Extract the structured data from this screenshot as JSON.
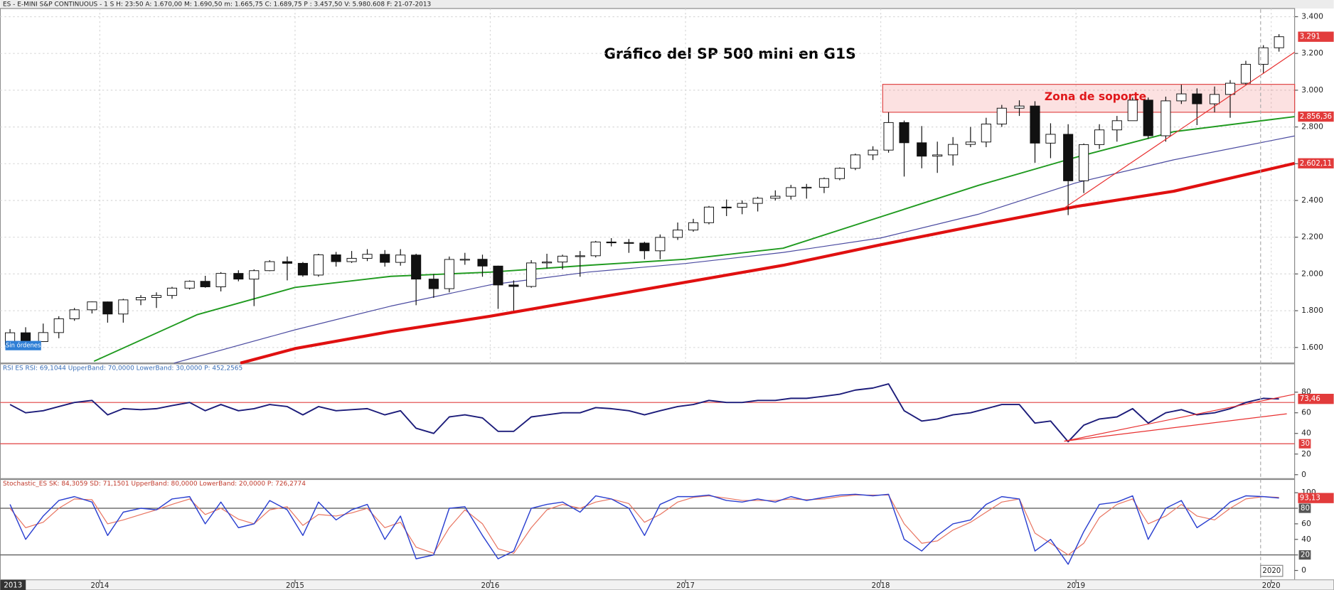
{
  "chart_data": [
    {
      "type": "candlestick",
      "header": "ES - E-MINI S&P CONTINUOUS -  1 S H: 23:50 A: 1.670,00 M: 1.690,50 m: 1.665,75 C: 1.689,75 P : 3.457,50 V: 5.980.608 F: 21-07-2013",
      "title": "Gráfico del SP 500 mini en G1S",
      "button": "Sin órdenes",
      "xlim": [
        2013.49,
        2020.12
      ],
      "xticks": [
        2014,
        2015,
        2016,
        2017,
        2018,
        2019,
        2020
      ],
      "ylim": [
        1520,
        3440
      ],
      "yticks": [
        {
          "value": 1600,
          "label": "1.600"
        },
        {
          "value": 1800,
          "label": "1.800"
        },
        {
          "value": 2000,
          "label": "2.000"
        },
        {
          "value": 2200,
          "label": "2.200"
        },
        {
          "value": 2400,
          "label": "2.400"
        },
        {
          "value": 2600,
          "label": "2.600"
        },
        {
          "value": 2800,
          "label": "2.800"
        },
        {
          "value": 3000,
          "label": "3.000"
        },
        {
          "value": 3200,
          "label": "3.200"
        },
        {
          "value": 3400,
          "label": "3.400"
        }
      ],
      "grid": true,
      "x": [
        2013.54,
        2013.62,
        2013.71,
        2013.79,
        2013.87,
        2013.96,
        2014.04,
        2014.12,
        2014.21,
        2014.29,
        2014.37,
        2014.46,
        2014.54,
        2014.62,
        2014.71,
        2014.79,
        2014.87,
        2014.96,
        2015.04,
        2015.12,
        2015.21,
        2015.29,
        2015.37,
        2015.46,
        2015.54,
        2015.62,
        2015.71,
        2015.79,
        2015.87,
        2015.96,
        2016.04,
        2016.12,
        2016.21,
        2016.29,
        2016.37,
        2016.46,
        2016.54,
        2016.62,
        2016.71,
        2016.79,
        2016.87,
        2016.96,
        2017.04,
        2017.12,
        2017.21,
        2017.29,
        2017.37,
        2017.46,
        2017.54,
        2017.62,
        2017.71,
        2017.79,
        2017.87,
        2017.96,
        2018.04,
        2018.12,
        2018.21,
        2018.29,
        2018.37,
        2018.46,
        2018.54,
        2018.62,
        2018.71,
        2018.79,
        2018.87,
        2018.96,
        2019.04,
        2019.12,
        2019.21,
        2019.29,
        2019.37,
        2019.46,
        2019.54,
        2019.62,
        2019.71,
        2019.79,
        2019.87,
        2019.96,
        2020.04
      ],
      "open": [
        1615,
        1680,
        1632,
        1681,
        1756,
        1805,
        1848,
        1782,
        1859,
        1872,
        1883,
        1923,
        1960,
        1930,
        2003,
        1972,
        2018,
        2067,
        2058,
        1994,
        2104,
        2067,
        2085,
        2107,
        2063,
        2103,
        1972,
        1920,
        2079,
        2080,
        2043,
        1940,
        1932,
        2060,
        2065,
        2097,
        2099,
        2174,
        2171,
        2168,
        2126,
        2199,
        2239,
        2279,
        2364,
        2363,
        2384,
        2412,
        2423,
        2470,
        2472,
        2519,
        2575,
        2648,
        2674,
        2824,
        2714,
        2641,
        2648,
        2705,
        2718,
        2816,
        2902,
        2914,
        2712,
        2760,
        2507,
        2704,
        2784,
        2834,
        2946,
        2752,
        2942,
        2980,
        2926,
        2977,
        3038,
        3141,
        3231
      ],
      "high": [
        1700,
        1710,
        1730,
        1770,
        1815,
        1850,
        1850,
        1865,
        1885,
        1900,
        1930,
        1965,
        1990,
        2010,
        2020,
        2025,
        2075,
        2095,
        2065,
        2110,
        2120,
        2125,
        2135,
        2130,
        2135,
        2110,
        2000,
        2095,
        2115,
        2105,
        2045,
        1965,
        2075,
        2110,
        2105,
        2125,
        2180,
        2195,
        2190,
        2175,
        2215,
        2280,
        2300,
        2370,
        2405,
        2400,
        2420,
        2455,
        2485,
        2490,
        2525,
        2580,
        2655,
        2695,
        2880,
        2835,
        2805,
        2720,
        2745,
        2800,
        2850,
        2920,
        2945,
        2940,
        2820,
        2815,
        2710,
        2815,
        2860,
        2960,
        2960,
        2965,
        3030,
        3010,
        3020,
        3055,
        3160,
        3245,
        3305
      ],
      "low": [
        1605,
        1630,
        1630,
        1650,
        1745,
        1785,
        1735,
        1735,
        1830,
        1815,
        1865,
        1915,
        1925,
        1905,
        1960,
        1825,
        2015,
        1965,
        1985,
        1985,
        2040,
        2060,
        2070,
        2040,
        2045,
        1830,
        1870,
        1900,
        2050,
        1985,
        1810,
        1800,
        1925,
        2030,
        2025,
        1985,
        2090,
        2150,
        2115,
        2080,
        2080,
        2185,
        2230,
        2270,
        2315,
        2325,
        2340,
        2400,
        2405,
        2410,
        2440,
        2510,
        2565,
        2620,
        2660,
        2530,
        2575,
        2550,
        2590,
        2690,
        2690,
        2800,
        2860,
        2605,
        2630,
        2320,
        2440,
        2680,
        2720,
        2835,
        2735,
        2720,
        2925,
        2810,
        2880,
        2850,
        3030,
        3090,
        3210
      ],
      "close": [
        1680,
        1632,
        1681,
        1756,
        1805,
        1848,
        1782,
        1859,
        1872,
        1883,
        1923,
        1960,
        1930,
        2003,
        1972,
        2018,
        2067,
        2058,
        1994,
        2104,
        2067,
        2085,
        2107,
        2063,
        2103,
        1972,
        1920,
        2079,
        2080,
        2043,
        1940,
        1932,
        2060,
        2065,
        2097,
        2099,
        2174,
        2171,
        2168,
        2126,
        2199,
        2239,
        2279,
        2364,
        2363,
        2384,
        2412,
        2423,
        2470,
        2472,
        2519,
        2575,
        2648,
        2674,
        2824,
        2714,
        2641,
        2648,
        2705,
        2718,
        2816,
        2902,
        2914,
        2712,
        2760,
        2507,
        2704,
        2784,
        2834,
        2946,
        2752,
        2942,
        2980,
        2926,
        2977,
        3038,
        3141,
        3231,
        3291
      ],
      "last_label": "3.291",
      "overlays": [
        {
          "color": "#1f9a1f",
          "width": 1.6,
          "x": [
            2013.97,
            2014.5,
            2015,
            2015.49,
            2016,
            2016.5,
            2017,
            2017.5,
            2018,
            2018.5,
            2019,
            2019.5,
            2020.12
          ],
          "values": [
            1525,
            1779,
            1927,
            1987,
            2010,
            2047,
            2080,
            2140,
            2311,
            2482,
            2635,
            2774,
            2856.36
          ],
          "end_label": "2.856,36"
        },
        {
          "color": "#4a4aa0",
          "width": 1,
          "x": [
            2014.38,
            2015,
            2015.49,
            2016,
            2016.5,
            2017,
            2017.5,
            2018,
            2018.5,
            2019,
            2019.5,
            2020.12
          ],
          "values": [
            1515,
            1696,
            1825,
            1941,
            2010,
            2057,
            2117,
            2196,
            2325,
            2496,
            2621,
            2751
          ]
        },
        {
          "color": "#e01010",
          "width": 3.5,
          "x": [
            2014.72,
            2015,
            2015.49,
            2016,
            2016.5,
            2017,
            2017.5,
            2018,
            2018.5,
            2019,
            2019.5,
            2020.12
          ],
          "values": [
            1515,
            1594,
            1687,
            1770,
            1862,
            1955,
            2047,
            2159,
            2265,
            2367,
            2450,
            2602.11
          ],
          "end_label": "2.602,11"
        }
      ],
      "support_zone": {
        "x": [
          2018.01,
          2020.12
        ],
        "y": [
          2880,
          3032
        ],
        "label": "Zona de soporte"
      },
      "trendlines": [
        {
          "x": [
            2018.94,
            2020.12
          ],
          "y": [
            2359,
            3207
          ],
          "color": "#e83030"
        }
      ]
    },
    {
      "type": "line",
      "header": "RSI ES RSI: 69,1044  UpperBand: 70,0000  LowerBand: 30,0000  P: 452,2565",
      "xlim": [
        2013.49,
        2020.12
      ],
      "ylim": [
        -3,
        100
      ],
      "yticks": [
        0,
        20,
        40,
        60,
        80
      ],
      "bands": [
        {
          "value": 70,
          "color": "#e04040",
          "boxed": false
        },
        {
          "value": 30,
          "color": "#e04040",
          "boxed": true
        }
      ],
      "series": [
        {
          "color": "#1c1c7a",
          "width": 1.6,
          "last_label": "73,46",
          "values": [
            68,
            60,
            62,
            66,
            70,
            72,
            58,
            64,
            63,
            64,
            67,
            70,
            62,
            68,
            62,
            64,
            68,
            66,
            58,
            66,
            62,
            63,
            64,
            58,
            62,
            45,
            40,
            56,
            58,
            55,
            42,
            42,
            56,
            58,
            60,
            60,
            65,
            64,
            62,
            58,
            62,
            66,
            68,
            72,
            70,
            70,
            72,
            72,
            74,
            74,
            76,
            78,
            82,
            84,
            88,
            62,
            52,
            54,
            58,
            60,
            64,
            68,
            68,
            50,
            52,
            32,
            48,
            54,
            56,
            64,
            50,
            60,
            63,
            58,
            60,
            64,
            70,
            74,
            73.46
          ]
        }
      ],
      "trendlines": [
        {
          "x": [
            2018.94,
            2020.12
          ],
          "y": [
            32.5,
            78
          ],
          "color": "#e83030"
        },
        {
          "x": [
            2018.94,
            2020.08
          ],
          "y": [
            32.5,
            59
          ],
          "color": "#e83030"
        }
      ]
    },
    {
      "type": "line",
      "header": "Stochastic_ES SK: 84,3059  SD: 71,1501  UpperBand: 80,0000  LowerBand: 20,0000  P: 726,2774",
      "xlim": [
        2013.49,
        2020.12
      ],
      "ylim": [
        -12,
        105
      ],
      "yticks": [
        0,
        20,
        40,
        60,
        80,
        100
      ],
      "bands": [
        {
          "value": 80,
          "color": "#555555",
          "boxed": true
        },
        {
          "value": 20,
          "color": "#555555",
          "boxed": true
        }
      ],
      "cursor_labels": [
        "2013",
        "2020"
      ],
      "series": [
        {
          "color": "#e8735f",
          "width": 1,
          "values": [
            80,
            55,
            62,
            80,
            92,
            91,
            60,
            65,
            72,
            78,
            85,
            92,
            72,
            80,
            66,
            60,
            78,
            82,
            58,
            72,
            70,
            74,
            80,
            55,
            62,
            30,
            22,
            55,
            78,
            60,
            28,
            22,
            55,
            78,
            85,
            80,
            88,
            92,
            86,
            62,
            72,
            88,
            94,
            96,
            93,
            90,
            90,
            90,
            92,
            91,
            92,
            95,
            97,
            97,
            97,
            60,
            35,
            38,
            52,
            62,
            75,
            88,
            92,
            48,
            35,
            20,
            35,
            68,
            85,
            92,
            60,
            70,
            85,
            70,
            65,
            80,
            92,
            95,
            94
          ]
        },
        {
          "color": "#2a3fd0",
          "width": 1.2,
          "last_label": "93,13",
          "values": [
            85,
            40,
            70,
            90,
            95,
            88,
            45,
            75,
            80,
            78,
            92,
            95,
            60,
            88,
            55,
            60,
            90,
            78,
            45,
            88,
            65,
            78,
            85,
            40,
            70,
            15,
            20,
            80,
            82,
            45,
            15,
            25,
            80,
            85,
            88,
            75,
            96,
            92,
            80,
            45,
            85,
            95,
            95,
            97,
            90,
            88,
            92,
            88,
            95,
            90,
            94,
            97,
            98,
            96,
            98,
            40,
            25,
            45,
            60,
            65,
            85,
            95,
            92,
            25,
            40,
            8,
            50,
            85,
            88,
            96,
            40,
            80,
            90,
            55,
            70,
            88,
            96,
            95,
            93.13
          ]
        }
      ]
    }
  ]
}
